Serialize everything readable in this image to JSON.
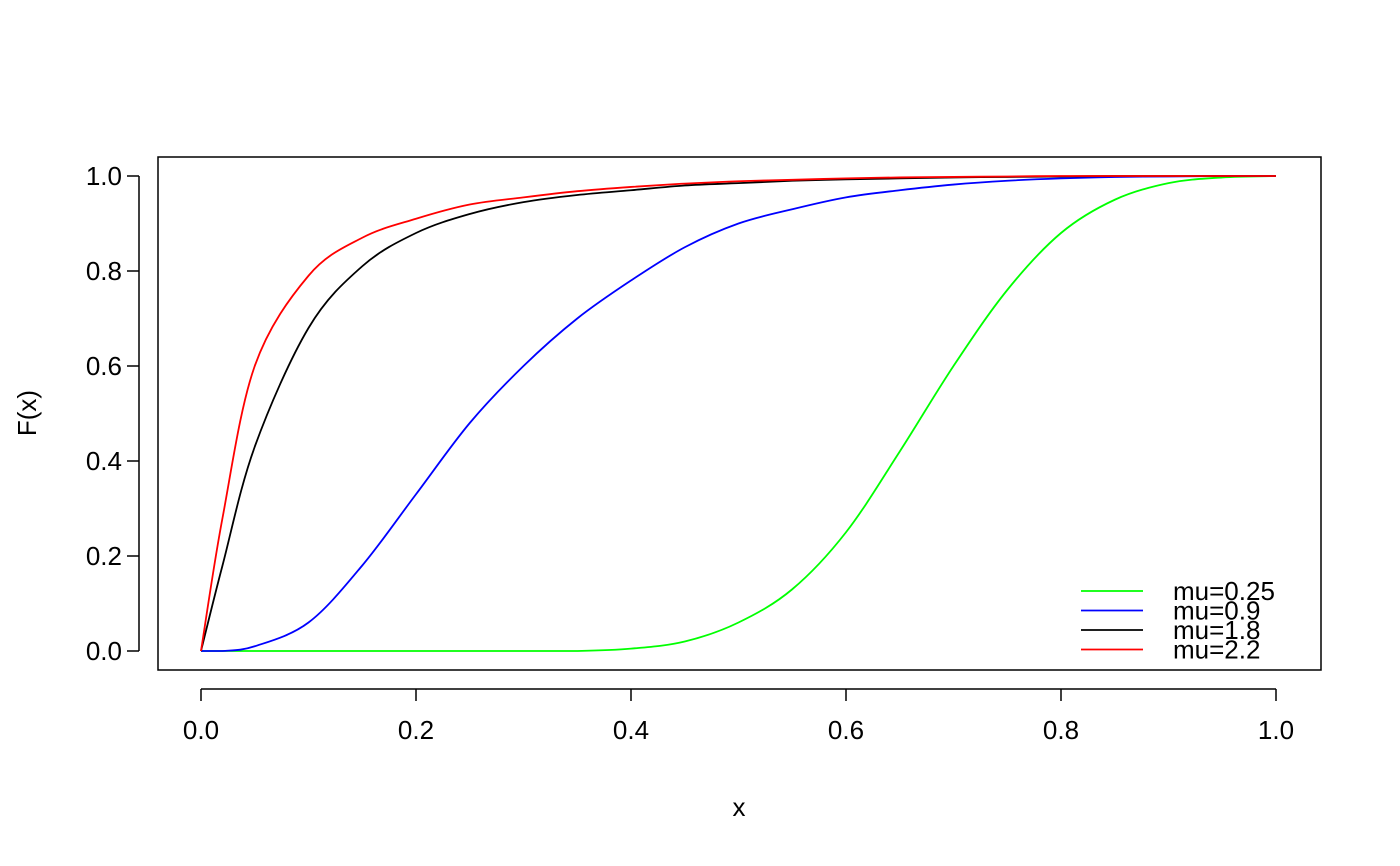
{
  "chart_data": {
    "type": "line",
    "title": "",
    "xlabel": "x",
    "ylabel": "F(x)",
    "xlim": [
      0,
      1
    ],
    "ylim": [
      0,
      1
    ],
    "grid": false,
    "legend_position": "bottom-right",
    "x_ticks": [
      "0.0",
      "0.2",
      "0.4",
      "0.6",
      "0.8",
      "1.0"
    ],
    "y_ticks": [
      "0.0",
      "0.2",
      "0.4",
      "0.6",
      "0.8",
      "1.0"
    ],
    "x": [
      0.0,
      0.02,
      0.05,
      0.1,
      0.15,
      0.2,
      0.25,
      0.3,
      0.35,
      0.4,
      0.45,
      0.5,
      0.55,
      0.6,
      0.65,
      0.7,
      0.75,
      0.8,
      0.85,
      0.9,
      0.95,
      1.0
    ],
    "series": [
      {
        "name": "mu=0.25",
        "color": "#00ff00",
        "values": [
          0.0,
          0.0,
          0.0,
          0.0,
          0.0,
          0.0,
          0.0,
          0.0,
          0.0,
          0.005,
          0.02,
          0.06,
          0.13,
          0.25,
          0.42,
          0.6,
          0.76,
          0.88,
          0.95,
          0.985,
          0.997,
          1.0
        ]
      },
      {
        "name": "mu=0.9",
        "color": "#0000ff",
        "values": [
          0.0,
          0.0,
          0.01,
          0.06,
          0.18,
          0.33,
          0.48,
          0.6,
          0.7,
          0.78,
          0.85,
          0.9,
          0.93,
          0.955,
          0.97,
          0.982,
          0.99,
          0.995,
          0.998,
          0.999,
          1.0,
          1.0
        ]
      },
      {
        "name": "mu=1.8",
        "color": "#000000",
        "values": [
          0.0,
          0.18,
          0.43,
          0.68,
          0.81,
          0.88,
          0.92,
          0.945,
          0.96,
          0.97,
          0.98,
          0.985,
          0.99,
          0.993,
          0.995,
          0.997,
          0.998,
          0.999,
          1.0,
          1.0,
          1.0,
          1.0
        ]
      },
      {
        "name": "mu=2.2",
        "color": "#ff0000",
        "values": [
          0.0,
          0.28,
          0.6,
          0.79,
          0.87,
          0.91,
          0.94,
          0.955,
          0.968,
          0.977,
          0.984,
          0.989,
          0.992,
          0.995,
          0.997,
          0.998,
          0.999,
          1.0,
          1.0,
          1.0,
          1.0,
          1.0
        ]
      }
    ]
  }
}
